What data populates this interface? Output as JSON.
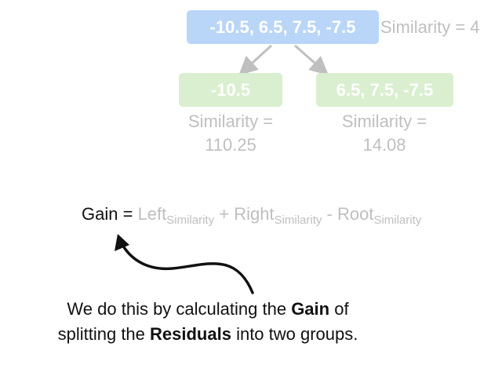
{
  "tree": {
    "root": {
      "residuals": "-10.5, 6.5, 7.5, -7.5",
      "similarity_text": "Similarity = 4"
    },
    "left": {
      "residuals": "-10.5",
      "similarity_label": "Similarity =",
      "similarity_value": "110.25"
    },
    "right": {
      "residuals": "6.5, 7.5, -7.5",
      "similarity_label": "Similarity =",
      "similarity_value": "14.08"
    }
  },
  "formula": {
    "gain": "Gain",
    "equals": " = ",
    "left": "Left",
    "plus": " + ",
    "right": "Right",
    "minus": " - ",
    "root": "Root",
    "subscript": "Similarity"
  },
  "caption": {
    "line1_prefix": "We do this by calculating the ",
    "line1_bold": "Gain",
    "line1_suffix": " of",
    "line2_prefix": "splitting the ",
    "line2_bold": "Residuals",
    "line2_suffix": " into two groups."
  },
  "colors": {
    "root_box": "#b9d5f7",
    "leaf_box": "#d9efcf",
    "faded_text": "#bfbfbf",
    "dark_text": "#111111"
  }
}
